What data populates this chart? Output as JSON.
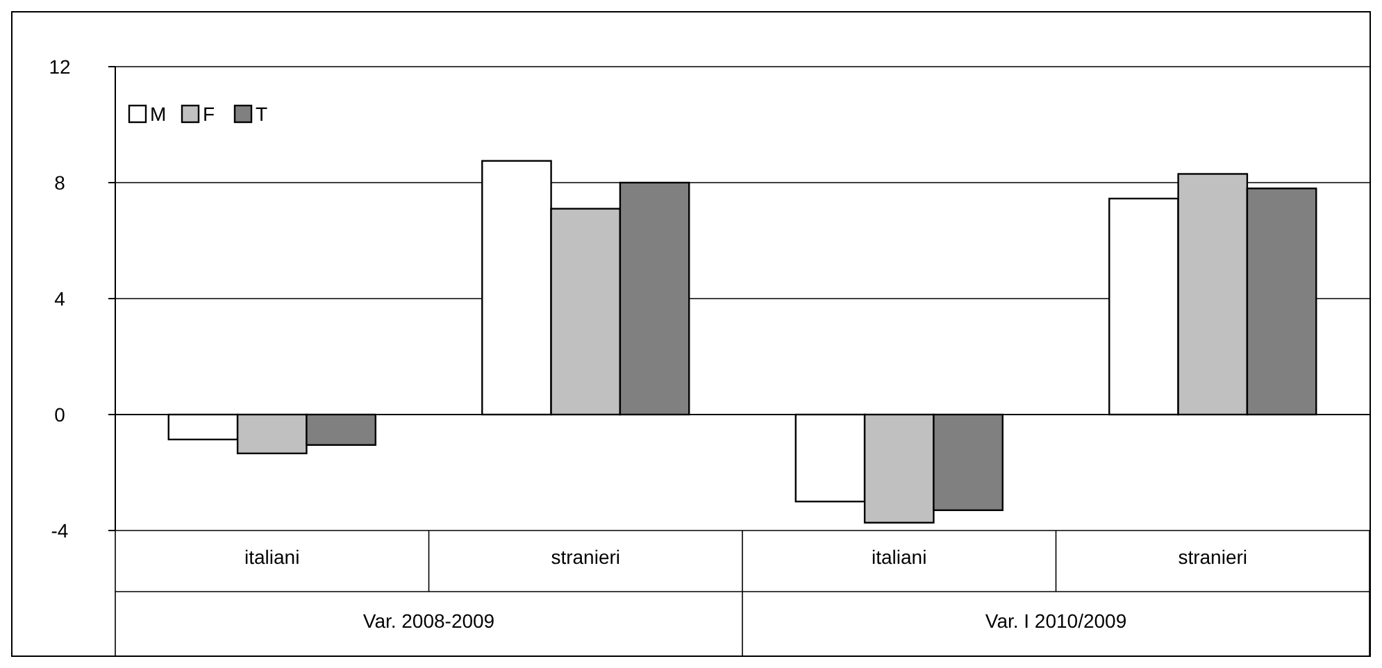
{
  "chart_data": {
    "type": "bar",
    "categories": [
      "italiani",
      "stranieri",
      "italiani",
      "stranieri"
    ],
    "annotations": [
      "Var. 2008-2009",
      "Var. I 2010/2009"
    ],
    "series": [
      {
        "name": "M",
        "color": "#ffffff",
        "values": [
          -0.86,
          8.75,
          -3.0,
          7.45
        ]
      },
      {
        "name": "F",
        "color": "#c0c0c0",
        "values": [
          -1.34,
          7.1,
          -3.73,
          8.3
        ]
      },
      {
        "name": "T",
        "color": "#808080",
        "values": [
          -1.05,
          8.0,
          -3.3,
          7.8
        ]
      }
    ],
    "ylim": [
      -4,
      12
    ],
    "yticks": [
      -4,
      0,
      4,
      8,
      12
    ],
    "grid": "y",
    "legend": "top left"
  }
}
